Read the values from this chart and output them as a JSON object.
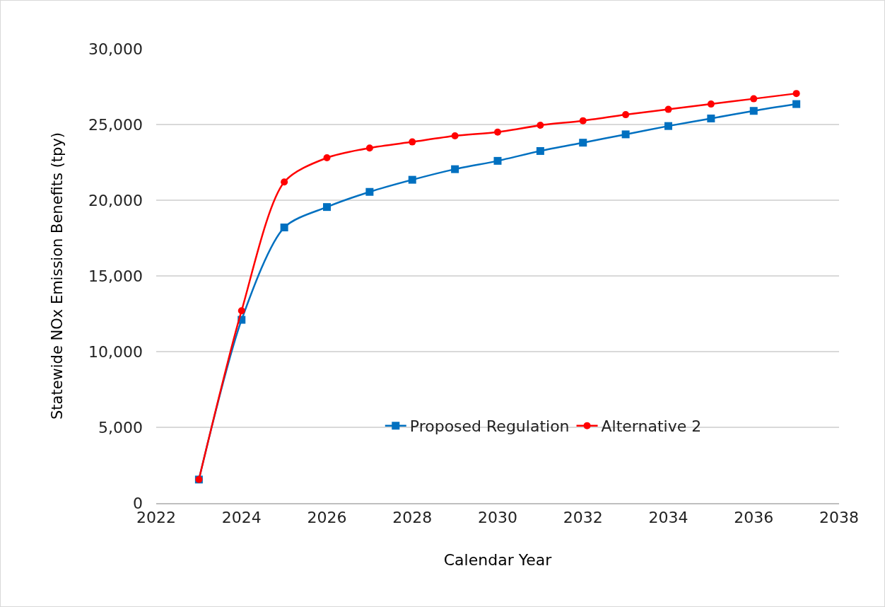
{
  "chart_data": {
    "type": "line",
    "xlabel": "Calendar Year",
    "ylabel": "Statewide NOx Emission Benefits (tpy)",
    "x": [
      2023,
      2024,
      2025,
      2026,
      2027,
      2028,
      2029,
      2030,
      2031,
      2032,
      2033,
      2034,
      2035,
      2036,
      2037
    ],
    "series": [
      {
        "name": "Proposed Regulation",
        "color": "#0070c0",
        "marker": "square",
        "values": [
          1550,
          12100,
          18200,
          19550,
          20550,
          21350,
          22050,
          22600,
          23250,
          23800,
          24350,
          24900,
          25400,
          25900,
          26350
        ]
      },
      {
        "name": "Alternative 2",
        "color": "#ff0000",
        "marker": "circle",
        "values": [
          1550,
          12700,
          21200,
          22800,
          23450,
          23850,
          24250,
          24500,
          24950,
          25250,
          25650,
          26000,
          26350,
          26700,
          27050
        ]
      }
    ],
    "xlim": [
      2022,
      2038
    ],
    "xticks": [
      2022,
      2024,
      2026,
      2028,
      2030,
      2032,
      2034,
      2036,
      2038
    ],
    "ylim": [
      0,
      30000
    ],
    "yticks": [
      {
        "value": 0,
        "label": "0"
      },
      {
        "value": 5000,
        "label": "5,000"
      },
      {
        "value": 10000,
        "label": "10,000"
      },
      {
        "value": 15000,
        "label": "15,000"
      },
      {
        "value": 20000,
        "label": "20,000"
      },
      {
        "value": 25000,
        "label": "25,000"
      },
      {
        "value": 30000,
        "label": "30,000"
      }
    ],
    "grid": "y",
    "legend": "bottom",
    "line_style": "solid"
  }
}
